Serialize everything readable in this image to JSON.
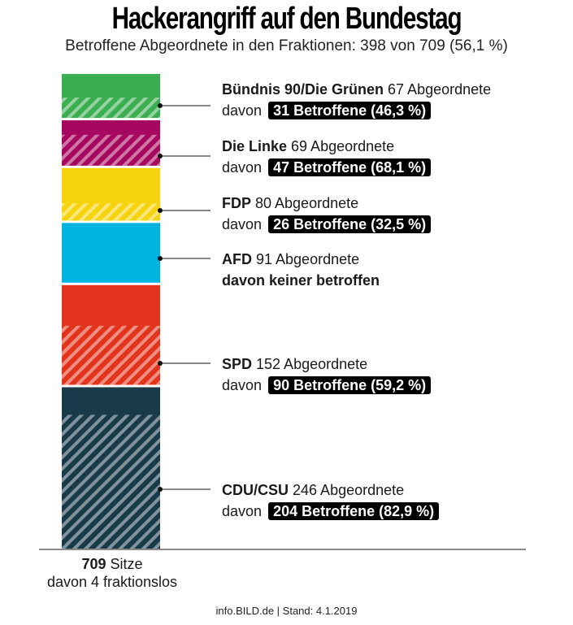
{
  "title": "Hackerangriff auf den Bundestag",
  "subtitle": "Betroffene Abgeordnete in den Fraktionen: 398 von 709 (56,1 %)",
  "chart_data": {
    "type": "bar",
    "stacked": true,
    "total_seats": 709,
    "series": [
      {
        "party": "Bündnis 90/Die Grünen",
        "members": 67,
        "affected": 31,
        "percent": "46,3 %",
        "color": "#3cae52"
      },
      {
        "party": "Die Linke",
        "members": 69,
        "affected": 47,
        "percent": "68,1 %",
        "color": "#a6075f"
      },
      {
        "party": "FDP",
        "members": 80,
        "affected": 26,
        "percent": "32,5 %",
        "color": "#f5d40f"
      },
      {
        "party": "AFD",
        "members": 91,
        "affected": 0,
        "percent": "",
        "color": "#00b4e1"
      },
      {
        "party": "SPD",
        "members": 152,
        "affected": 90,
        "percent": "59,2 %",
        "color": "#e2341d"
      },
      {
        "party": "CDU/CSU",
        "members": 246,
        "affected": 204,
        "percent": "82,9 %",
        "color": "#183a49"
      }
    ]
  },
  "labels": {
    "gruene": {
      "party": "Bündnis 90/Die Grünen",
      "members": " 67 Abgeordnete",
      "davon": "davon",
      "badge": "31 Betroffene (46,3 %)"
    },
    "linke": {
      "party": "Die Linke",
      "members": " 69 Abgeordnete",
      "davon": "davon",
      "badge": "47 Betroffene (68,1 %)"
    },
    "fdp": {
      "party": "FDP",
      "members": " 80 Abgeordnete",
      "davon": "davon",
      "badge": "26 Betroffene (32,5 %)"
    },
    "afd": {
      "party": "AFD",
      "members": " 91 Abgeordnete",
      "none": "davon keiner betroffen"
    },
    "spd": {
      "party": "SPD",
      "members": " 152 Abgeordnete",
      "davon": "davon",
      "badge": "90 Betroffene (59,2 %)"
    },
    "cdu": {
      "party": "CDU/CSU",
      "members": " 246 Abgeordnete",
      "davon": "davon",
      "badge": "204 Betroffene (82,9 %)"
    }
  },
  "footer": {
    "seats_number": "709",
    "seats_label": " Sitze",
    "fraktionslos": "davon 4 fraktionslos",
    "source": "info.BILD.de | Stand: 4.1.2019"
  }
}
